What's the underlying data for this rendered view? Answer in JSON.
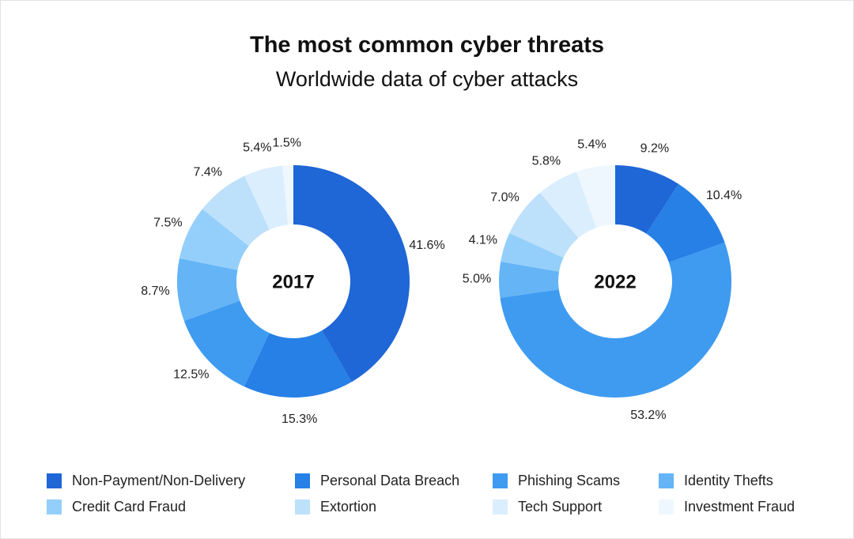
{
  "colors": {
    "Non-Payment/Non-Delivery": "#1f66d6",
    "Personal Data Breach": "#2680e6",
    "Phishing Scams": "#3e9bf0",
    "Identity Thefts": "#64b4f6",
    "Credit Card Fraud": "#93cffa",
    "Extortion": "#bde0fb",
    "Tech Support": "#dbeefd",
    "Investment Fraud": "#eef7fe"
  },
  "chart_data": [
    {
      "type": "pie",
      "title": "The most common cyber threats",
      "subtitle": "Worldwide data of cyber attacks",
      "center_label": "2017",
      "categories": [
        "Non-Payment/Non-Delivery",
        "Personal Data Breach",
        "Phishing Scams",
        "Identity Thefts",
        "Credit Card Fraud",
        "Extortion",
        "Tech Support",
        "Investment Fraud"
      ],
      "values": [
        41.6,
        15.3,
        12.5,
        8.7,
        7.5,
        7.4,
        5.4,
        1.5
      ],
      "labels": [
        "41.6%",
        "15.3%",
        "12.5%",
        "8.7%",
        "7.5%",
        "7.4%",
        "5.4%",
        "1.5%"
      ],
      "legend_position": "bottom"
    },
    {
      "type": "pie",
      "title": "The most common cyber threats",
      "subtitle": "Worldwide data of cyber attacks",
      "center_label": "2022",
      "categories": [
        "Non-Payment/Non-Delivery",
        "Personal Data Breach",
        "Phishing Scams",
        "Identity Thefts",
        "Credit Card Fraud",
        "Extortion",
        "Tech Support",
        "Investment Fraud"
      ],
      "values": [
        9.2,
        10.4,
        53.2,
        5.0,
        4.1,
        7.0,
        5.8,
        5.4
      ],
      "labels": [
        "9.2%",
        "10.4%",
        "53.2%",
        "5.0%",
        "4.1%",
        "7.0%",
        "5.8%",
        "5.4%"
      ],
      "legend_position": "bottom"
    }
  ],
  "legend": [
    "Non-Payment/Non-Delivery",
    "Personal Data Breach",
    "Phishing Scams",
    "Identity Thefts",
    "Credit Card Fraud",
    "Extortion",
    "Tech Support",
    "Investment Fraud"
  ]
}
